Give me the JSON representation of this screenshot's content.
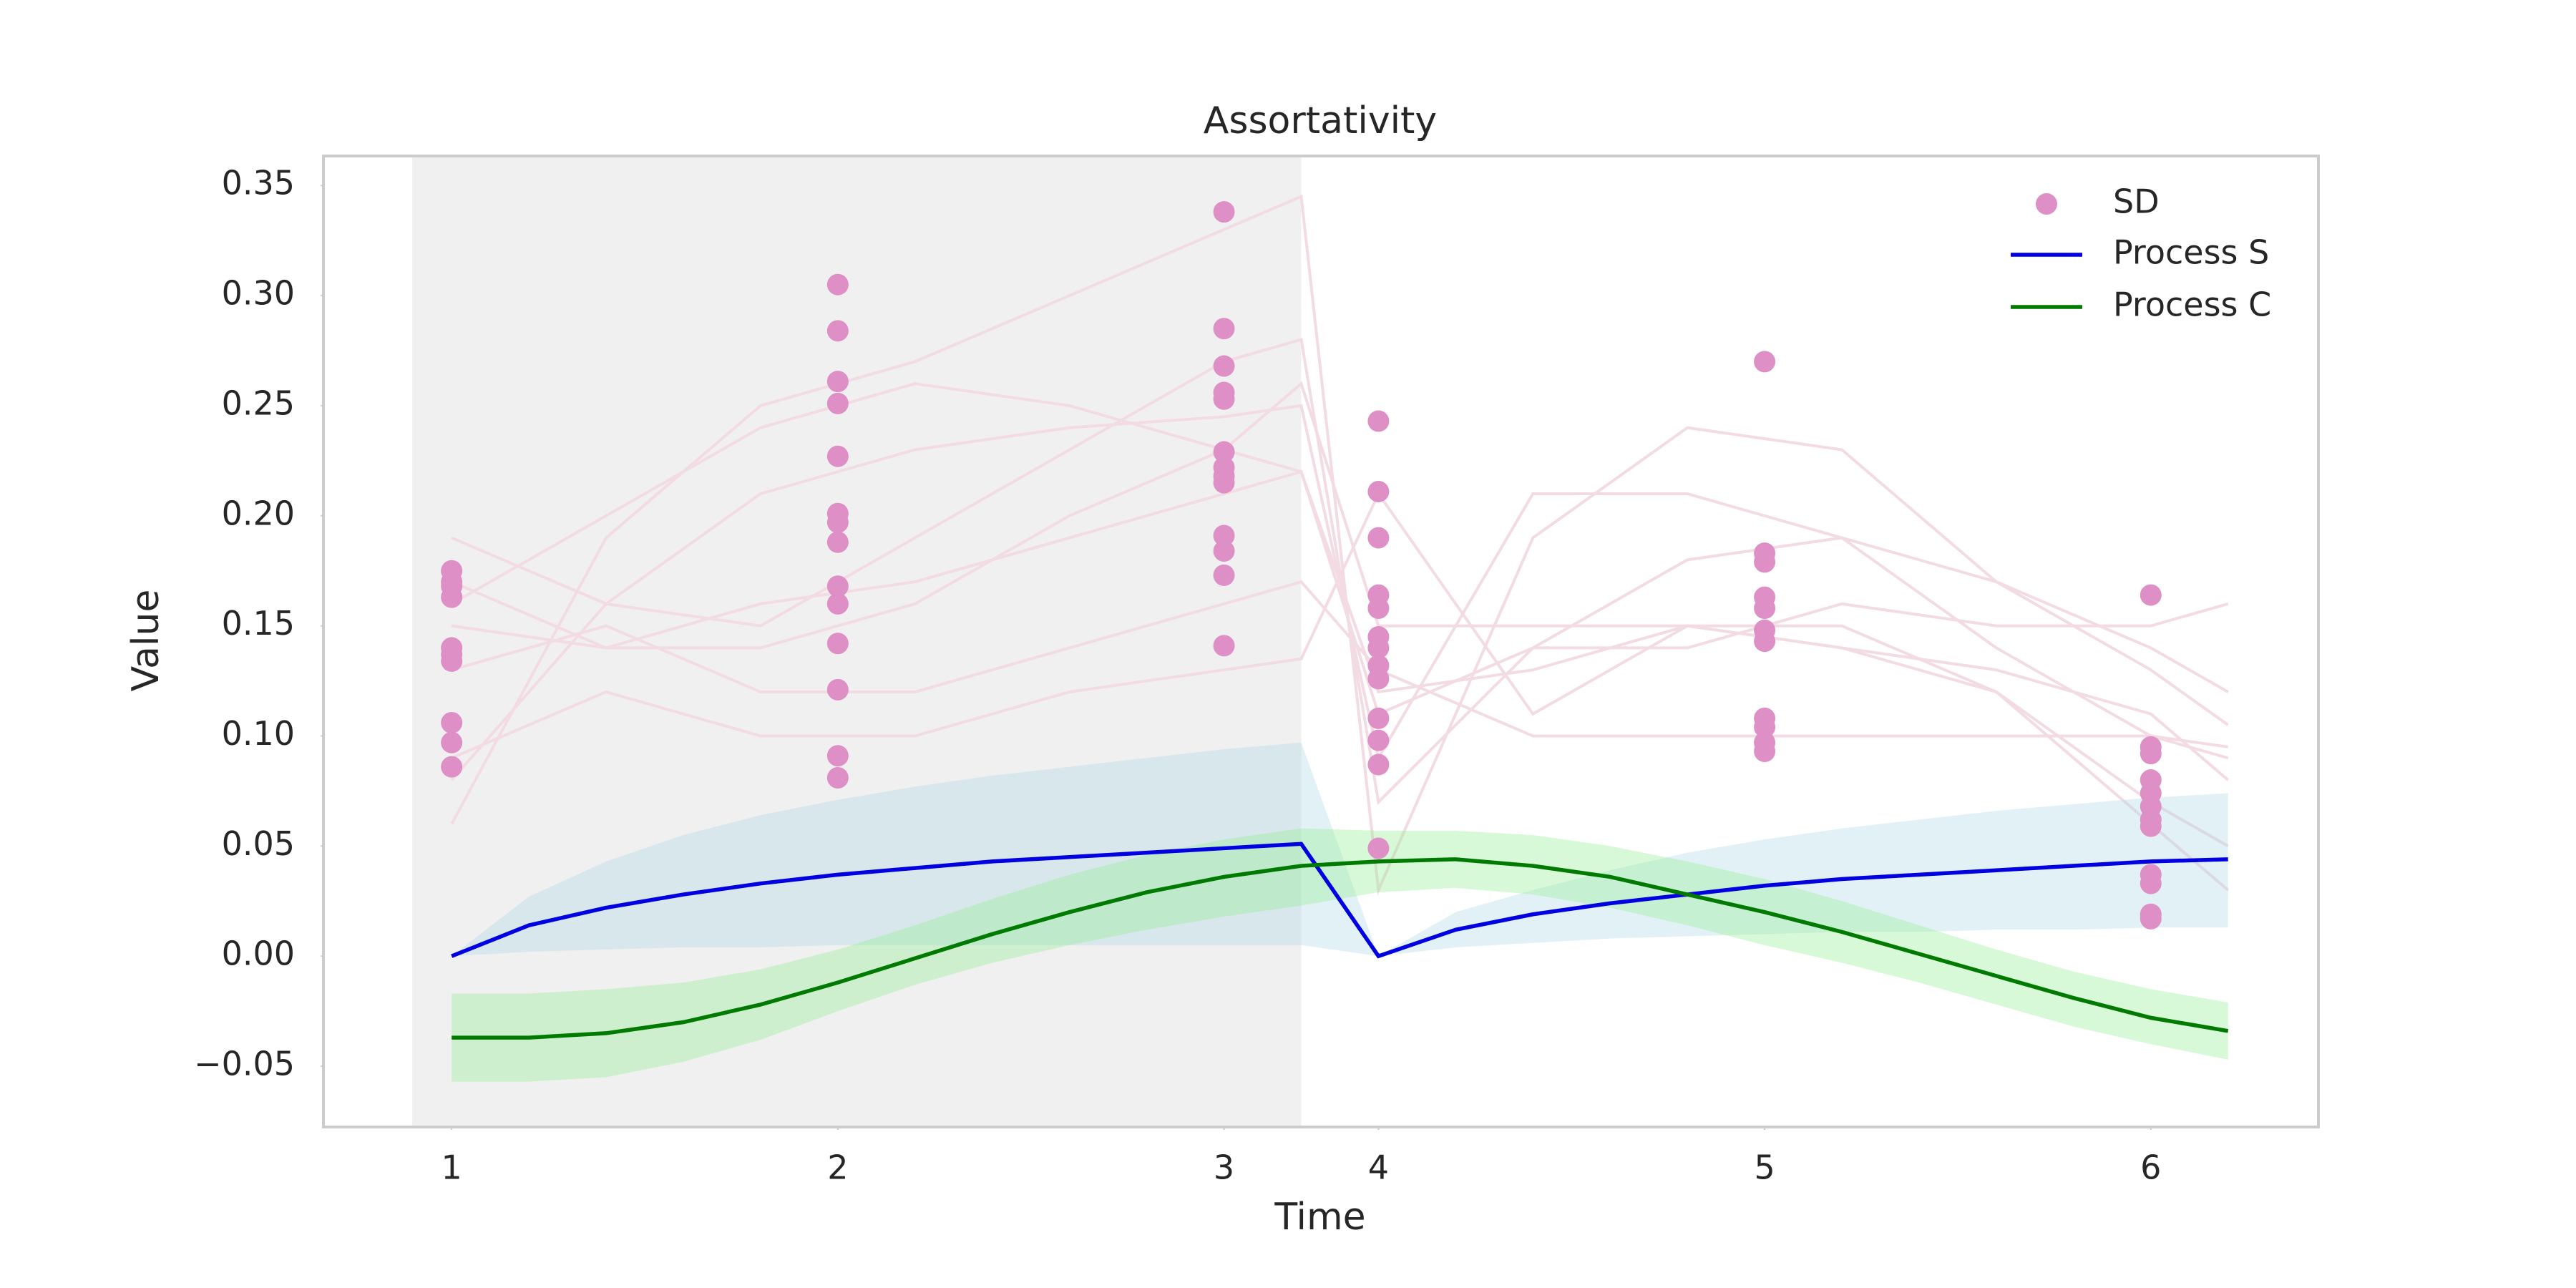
{
  "chart_data": {
    "type": "line",
    "title": "Assortativity",
    "xlabel": "Time",
    "ylabel": "Value",
    "xlim": [
      0.668,
      5.834
    ],
    "ylim": [
      -0.0776,
      0.3634
    ],
    "xticks": [
      1,
      2,
      3,
      {
        "value": 3.4,
        "label": "4"
      },
      {
        "value": 4.4,
        "label": "5"
      },
      {
        "value": 5.4,
        "label": "6"
      }
    ],
    "yticks": [
      {
        "value": -0.05,
        "label": "−0.05"
      },
      {
        "value": 0,
        "label": "0.00"
      },
      0.05,
      {
        "value": 0.1,
        "label": "0.10"
      },
      0.15,
      {
        "value": 0.2,
        "label": "0.20"
      },
      0.25,
      {
        "value": 0.3,
        "label": "0.30"
      },
      0.35
    ],
    "grid": false,
    "legend": "upper right",
    "shaded_span": {
      "x": [
        0.898,
        3.2
      ],
      "color": "#e6e6e6"
    },
    "x": [
      1,
      1.2,
      1.4,
      1.6,
      1.8,
      2.0,
      2.2,
      2.4,
      2.6,
      2.8,
      3.0,
      3.2,
      3.4,
      3.6,
      3.8,
      4.0,
      4.2,
      4.4,
      4.6,
      4.8,
      5.0,
      5.2,
      5.4,
      5.6
    ],
    "series": [
      {
        "name": "Process S",
        "color": "#0000e0",
        "band_color": "#add8e6",
        "values": [
          0,
          0.014,
          0.022,
          0.028,
          0.033,
          0.037,
          0.04,
          0.043,
          0.045,
          0.047,
          0.049,
          0.051,
          0,
          0.012,
          0.019,
          0.024,
          0.028,
          0.032,
          0.035,
          0.037,
          0.039,
          0.041,
          0.043,
          0.044
        ],
        "upper": [
          0,
          0.027,
          0.043,
          0.055,
          0.064,
          0.071,
          0.077,
          0.082,
          0.086,
          0.09,
          0.094,
          0.097,
          0,
          0.02,
          0.03,
          0.039,
          0.047,
          0.053,
          0.058,
          0.062,
          0.066,
          0.069,
          0.072,
          0.074
        ],
        "lower": [
          0,
          0.002,
          0.003,
          0.004,
          0.004,
          0.005,
          0.005,
          0.005,
          0.005,
          0.005,
          0.005,
          0.005,
          0,
          0.004,
          0.006,
          0.008,
          0.009,
          0.01,
          0.011,
          0.011,
          0.012,
          0.012,
          0.013,
          0.013
        ]
      },
      {
        "name": "Process C",
        "color": "#007a00",
        "band_color": "#90ee90",
        "values": [
          -0.037,
          -0.037,
          -0.035,
          -0.03,
          -0.022,
          -0.012,
          -0.001,
          0.01,
          0.02,
          0.029,
          0.036,
          0.041,
          0.043,
          0.044,
          0.041,
          0.036,
          0.028,
          0.02,
          0.011,
          0.001,
          -0.009,
          -0.019,
          -0.028,
          -0.034
        ],
        "upper": [
          -0.017,
          -0.017,
          -0.015,
          -0.012,
          -0.006,
          0.003,
          0.014,
          0.026,
          0.037,
          0.046,
          0.053,
          0.058,
          0.057,
          0.057,
          0.055,
          0.05,
          0.043,
          0.035,
          0.025,
          0.014,
          0.003,
          -0.007,
          -0.015,
          -0.021
        ],
        "lower": [
          -0.057,
          -0.057,
          -0.055,
          -0.048,
          -0.038,
          -0.025,
          -0.013,
          -0.003,
          0.005,
          0.012,
          0.018,
          0.023,
          0.029,
          0.031,
          0.028,
          0.022,
          0.014,
          0.005,
          -0.003,
          -0.012,
          -0.022,
          -0.032,
          -0.04,
          -0.047
        ]
      }
    ],
    "scatter": {
      "name": "SD",
      "color": "#de8fc6",
      "x": [
        1,
        1,
        1,
        1,
        1,
        1,
        1,
        1,
        1,
        1,
        2,
        2,
        2,
        2,
        2,
        2,
        2,
        2,
        2,
        2,
        2,
        2,
        2,
        2,
        3,
        3,
        3,
        3,
        3,
        3,
        3,
        3,
        3,
        3,
        3,
        3,
        3,
        3.4,
        3.4,
        3.4,
        3.4,
        3.4,
        3.4,
        3.4,
        3.4,
        3.4,
        3.4,
        3.4,
        3.4,
        3.4,
        4.4,
        4.4,
        4.4,
        4.4,
        4.4,
        4.4,
        4.4,
        4.4,
        4.4,
        4.4,
        4.4,
        5.4,
        5.4,
        5.4,
        5.4,
        5.4,
        5.4,
        5.4,
        5.4,
        5.4,
        5.4,
        5.4,
        5.4
      ],
      "values": [
        0.175,
        0.17,
        0.168,
        0.163,
        0.14,
        0.137,
        0.134,
        0.106,
        0.097,
        0.086,
        0.305,
        0.284,
        0.261,
        0.251,
        0.227,
        0.201,
        0.197,
        0.188,
        0.168,
        0.16,
        0.142,
        0.121,
        0.091,
        0.081,
        0.338,
        0.285,
        0.268,
        0.256,
        0.253,
        0.229,
        0.222,
        0.218,
        0.215,
        0.191,
        0.184,
        0.173,
        0.141,
        0.243,
        0.211,
        0.19,
        0.164,
        0.158,
        0.145,
        0.14,
        0.132,
        0.126,
        0.108,
        0.098,
        0.087,
        0.049,
        0.27,
        0.183,
        0.179,
        0.163,
        0.158,
        0.148,
        0.143,
        0.108,
        0.104,
        0.097,
        0.093,
        0.164,
        0.095,
        0.092,
        0.08,
        0.074,
        0.068,
        0.062,
        0.059,
        0.037,
        0.033,
        0.019,
        0.017
      ]
    },
    "trajectory_color": "#f3dbe3",
    "trajectory_x": [
      1,
      1.4,
      1.8,
      2.2,
      2.6,
      3.0,
      3.2,
      3.4,
      3.8,
      4.2,
      4.6,
      5.0,
      5.4,
      5.6
    ],
    "trajectories": [
      [
        0.06,
        0.19,
        0.25,
        0.27,
        0.3,
        0.33,
        0.345,
        0.03,
        0.19,
        0.24,
        0.23,
        0.17,
        0.13,
        0.105
      ],
      [
        0.19,
        0.16,
        0.15,
        0.19,
        0.23,
        0.27,
        0.28,
        0.07,
        0.14,
        0.18,
        0.19,
        0.17,
        0.14,
        0.12
      ],
      [
        0.08,
        0.16,
        0.21,
        0.23,
        0.24,
        0.245,
        0.25,
        0.09,
        0.21,
        0.21,
        0.19,
        0.14,
        0.1,
        0.09
      ],
      [
        0.17,
        0.14,
        0.14,
        0.16,
        0.2,
        0.23,
        0.26,
        0.15,
        0.15,
        0.15,
        0.14,
        0.13,
        0.11,
        0.08
      ],
      [
        0.13,
        0.15,
        0.12,
        0.12,
        0.14,
        0.16,
        0.17,
        0.13,
        0.1,
        0.1,
        0.1,
        0.1,
        0.1,
        0.095
      ],
      [
        0.09,
        0.12,
        0.1,
        0.1,
        0.12,
        0.13,
        0.135,
        0.21,
        0.11,
        0.15,
        0.15,
        0.12,
        0.07,
        0.05
      ],
      [
        0.16,
        0.2,
        0.24,
        0.26,
        0.25,
        0.23,
        0.22,
        0.11,
        0.14,
        0.14,
        0.16,
        0.15,
        0.15,
        0.16
      ],
      [
        0.15,
        0.14,
        0.16,
        0.17,
        0.19,
        0.21,
        0.22,
        0.12,
        0.13,
        0.15,
        0.14,
        0.12,
        0.06,
        0.03
      ]
    ]
  }
}
